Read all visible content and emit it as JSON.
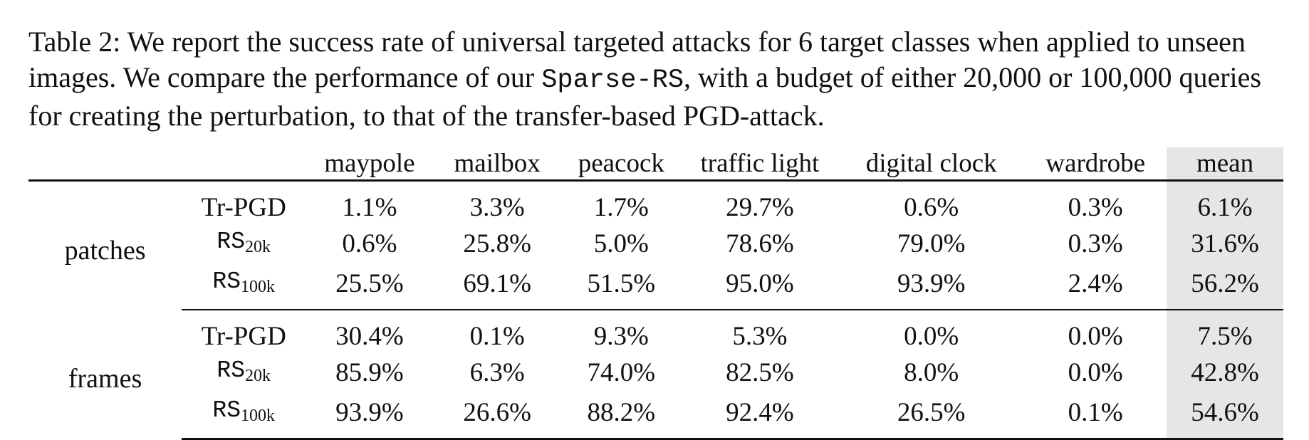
{
  "caption": {
    "part1": "Table 2: We report the success rate of universal targeted attacks for 6 target classes when applied to unseen images. We compare the performance of our ",
    "method_name": "Sparse-RS",
    "part2": ", with a budget of either 20,000 or 100,000 queries for creating the perturbation, to that of the transfer-based PGD-attack."
  },
  "table": {
    "columns": [
      "maypole",
      "mailbox",
      "peacock",
      "traffic light",
      "digital clock",
      "wardrobe",
      "mean"
    ],
    "groups": [
      {
        "label": "patches",
        "rows": [
          {
            "method": "Tr-PGD",
            "method_base": "",
            "method_sub": "",
            "values": [
              "1.1%",
              "3.3%",
              "1.7%",
              "29.7%",
              "0.6%",
              "0.3%",
              "6.1%"
            ]
          },
          {
            "method": "",
            "method_base": "RS",
            "method_sub": "20k",
            "values": [
              "0.6%",
              "25.8%",
              "5.0%",
              "78.6%",
              "79.0%",
              "0.3%",
              "31.6%"
            ]
          },
          {
            "method": "",
            "method_base": "RS",
            "method_sub": "100k",
            "values": [
              "25.5%",
              "69.1%",
              "51.5%",
              "95.0%",
              "93.9%",
              "2.4%",
              "56.2%"
            ]
          }
        ]
      },
      {
        "label": "frames",
        "rows": [
          {
            "method": "Tr-PGD",
            "method_base": "",
            "method_sub": "",
            "values": [
              "30.4%",
              "0.1%",
              "9.3%",
              "5.3%",
              "0.0%",
              "0.0%",
              "7.5%"
            ]
          },
          {
            "method": "",
            "method_base": "RS",
            "method_sub": "20k",
            "values": [
              "85.9%",
              "6.3%",
              "74.0%",
              "82.5%",
              "8.0%",
              "0.0%",
              "42.8%"
            ]
          },
          {
            "method": "",
            "method_base": "RS",
            "method_sub": "100k",
            "values": [
              "93.9%",
              "26.6%",
              "88.2%",
              "92.4%",
              "26.5%",
              "0.1%",
              "54.6%"
            ]
          }
        ]
      }
    ]
  }
}
